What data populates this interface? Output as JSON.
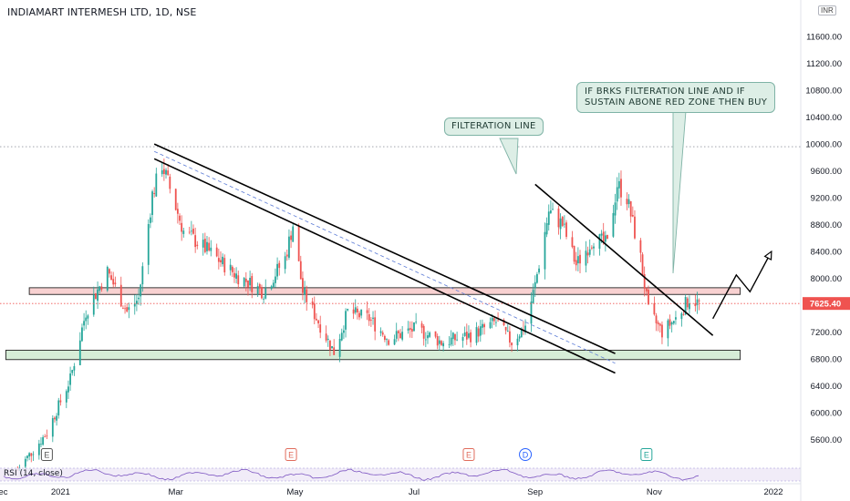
{
  "symbol": {
    "title": "INDIAMART INTERMESH LTD, 1D, NSE",
    "currency": "INR"
  },
  "indicator": {
    "label": "RSI (14, close)"
  },
  "annotations": {
    "filter_line_label": "FILTERATION LINE",
    "buy_note_line1": "IF BRKS FILTERATION LINE AND IF",
    "buy_note_line2": "SUSTAIN ABONE RED ZONE THEN BUY"
  },
  "event_markers": [
    {
      "label": "E",
      "date": "2020-12-25",
      "color": "#555555"
    },
    {
      "label": "E",
      "date": "2021-04-29",
      "color": "#e06c5c"
    },
    {
      "label": "E",
      "date": "2021-07-29",
      "color": "#e06c5c"
    },
    {
      "label": "D",
      "date": "2021-08-27",
      "color": "#2962ff"
    },
    {
      "label": "E",
      "date": "2021-10-28",
      "color": "#26a69a"
    }
  ],
  "chart_data": {
    "type": "candlestick",
    "x_axis": {
      "type": "date",
      "range": [
        "2020-12-01",
        "2022-01-15"
      ],
      "ticks": [
        {
          "date": "2020-12-01",
          "label": "Dec"
        },
        {
          "date": "2021-01-01",
          "label": "2021"
        },
        {
          "date": "2021-03-01",
          "label": "Mar"
        },
        {
          "date": "2021-05-01",
          "label": "May"
        },
        {
          "date": "2021-07-01",
          "label": "Jul"
        },
        {
          "date": "2021-09-01",
          "label": "Sep"
        },
        {
          "date": "2021-11-01",
          "label": "Nov"
        },
        {
          "date": "2022-01-01",
          "label": "2022"
        }
      ]
    },
    "y_axis": {
      "range": [
        5200,
        11900
      ],
      "ticks": [
        5600,
        6000,
        6400,
        6800,
        7200,
        7600,
        8000,
        8400,
        8800,
        9200,
        9600,
        10000,
        10400,
        10800,
        11200,
        11600
      ],
      "tick_labels": [
        "5600.00",
        "6000.00",
        "6400.00",
        "6800.00",
        "7200.00",
        "7600.00",
        "8000.00",
        "8400.00",
        "8800.00",
        "9200.00",
        "9600.00",
        "10000.00",
        "10400.00",
        "10800.00",
        "11200.00",
        "11600.00"
      ]
    },
    "last_price": {
      "value": 7625.4,
      "label": "7625.40",
      "color": "#ef5350"
    },
    "reference_line": {
      "value": 9960,
      "style": "dotted"
    },
    "colors": {
      "up": "#26a69a",
      "down": "#ef5350"
    },
    "anchors": [
      [
        "2020-12-10",
        5150
      ],
      [
        "2020-12-25",
        5700
      ],
      [
        "2021-01-06",
        6500
      ],
      [
        "2021-01-14",
        7500
      ],
      [
        "2021-01-25",
        8100
      ],
      [
        "2021-02-04",
        7500
      ],
      [
        "2021-02-10",
        7700
      ],
      [
        "2021-02-17",
        9250
      ],
      [
        "2021-02-22",
        9700
      ],
      [
        "2021-03-05",
        8700
      ],
      [
        "2021-03-18",
        8400
      ],
      [
        "2021-04-01",
        8050
      ],
      [
        "2021-04-15",
        7800
      ],
      [
        "2021-04-26",
        8300
      ],
      [
        "2021-04-30",
        8800
      ],
      [
        "2021-05-05",
        7800
      ],
      [
        "2021-05-14",
        7300
      ],
      [
        "2021-05-21",
        6900
      ],
      [
        "2021-05-28",
        7500
      ],
      [
        "2021-06-08",
        7400
      ],
      [
        "2021-06-18",
        7100
      ],
      [
        "2021-07-02",
        7250
      ],
      [
        "2021-07-15",
        7050
      ],
      [
        "2021-07-30",
        7150
      ],
      [
        "2021-08-12",
        7350
      ],
      [
        "2021-08-20",
        7050
      ],
      [
        "2021-08-27",
        7300
      ],
      [
        "2021-09-01",
        7900
      ],
      [
        "2021-09-08",
        9000
      ],
      [
        "2021-09-15",
        8800
      ],
      [
        "2021-09-22",
        8200
      ],
      [
        "2021-10-01",
        8600
      ],
      [
        "2021-10-08",
        8500
      ],
      [
        "2021-10-13",
        9400
      ],
      [
        "2021-10-18",
        9200
      ],
      [
        "2021-10-25",
        8300
      ],
      [
        "2021-10-29",
        7500
      ],
      [
        "2021-11-05",
        7200
      ],
      [
        "2021-11-12",
        7400
      ],
      [
        "2021-11-19",
        7700
      ],
      [
        "2021-11-24",
        7625
      ]
    ],
    "zones": [
      {
        "name": "red zone",
        "from": 7760,
        "to": 7860,
        "start": "2020-12-16",
        "end": "2021-12-15",
        "color": "#ef9a9a"
      },
      {
        "name": "green zone",
        "from": 6790,
        "to": 6930,
        "start": "2020-12-04",
        "end": "2021-12-15",
        "color": "#a5d6a7"
      }
    ],
    "trendlines": [
      {
        "name": "downtrend upper",
        "from": [
          "2021-02-18",
          10000
        ],
        "to": [
          "2021-10-12",
          6880
        ]
      },
      {
        "name": "downtrend lower",
        "from": [
          "2021-02-18",
          9780
        ],
        "to": [
          "2021-10-12",
          6590
        ]
      },
      {
        "name": "filteration line",
        "from": [
          "2021-09-01",
          9400
        ],
        "to": [
          "2021-12-01",
          7150
        ]
      }
    ],
    "projection_path": [
      [
        "2021-12-01",
        7400
      ],
      [
        "2021-12-13",
        8050
      ],
      [
        "2021-12-20",
        7800
      ],
      [
        "2021-12-31",
        8400
      ]
    ],
    "rsi": {
      "name": "RSI (14, close)",
      "range": [
        0,
        100
      ],
      "bands": [
        30,
        70
      ]
    }
  }
}
